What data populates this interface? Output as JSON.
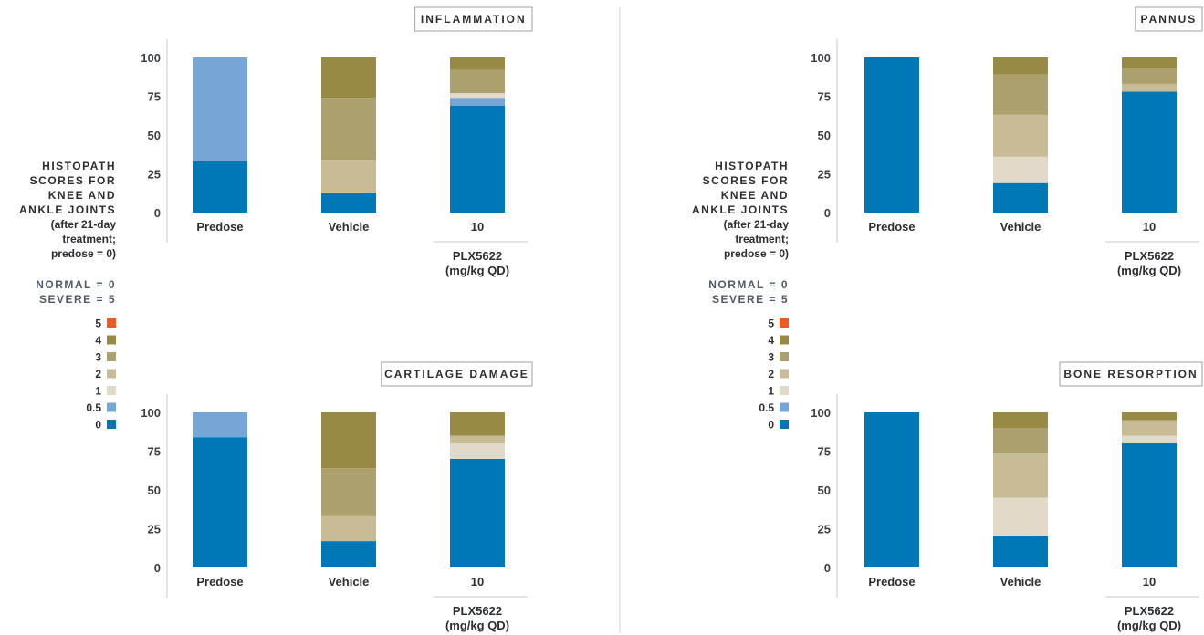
{
  "side_label": {
    "lines": [
      "HISTOPATH",
      "SCORES FOR",
      "KNEE AND",
      "ANKLE JOINTS",
      "(after 21-day",
      "treatment;",
      "predose = 0)"
    ],
    "normal": "NORMAL = 0",
    "severe": "SEVERE = 5"
  },
  "legend": {
    "items": [
      {
        "label": "5",
        "color": "#ee5a24"
      },
      {
        "label": "4",
        "color": "#988a45"
      },
      {
        "label": "3",
        "color": "#aca06d"
      },
      {
        "label": "2",
        "color": "#c8bc97"
      },
      {
        "label": "1",
        "color": "#e2dac8"
      },
      {
        "label": "0.5",
        "color": "#76a6d6"
      },
      {
        "label": "0",
        "color": "#0077b6"
      }
    ]
  },
  "chart_data": [
    {
      "type": "bar",
      "stacked": true,
      "title": "INFLAMMATION",
      "categories": [
        "Predose",
        "Vehicle",
        "10"
      ],
      "group_label": [
        "PLX5622",
        "(mg/kg QD)"
      ],
      "yticks": [
        0,
        25,
        50,
        75,
        100
      ],
      "ylim": [
        0,
        100
      ],
      "series": [
        {
          "name": "0",
          "values": [
            33,
            13,
            69
          ]
        },
        {
          "name": "0.5",
          "values": [
            67,
            0,
            5
          ]
        },
        {
          "name": "1",
          "values": [
            0,
            0,
            3
          ]
        },
        {
          "name": "2",
          "values": [
            0,
            21,
            0
          ]
        },
        {
          "name": "3",
          "values": [
            0,
            40,
            15
          ]
        },
        {
          "name": "4",
          "values": [
            0,
            26,
            8
          ]
        },
        {
          "name": "5",
          "values": [
            0,
            0,
            0
          ]
        }
      ]
    },
    {
      "type": "bar",
      "stacked": true,
      "title": "PANNUS",
      "categories": [
        "Predose",
        "Vehicle",
        "10"
      ],
      "group_label": [
        "PLX5622",
        "(mg/kg QD)"
      ],
      "yticks": [
        0,
        25,
        50,
        75,
        100
      ],
      "ylim": [
        0,
        100
      ],
      "series": [
        {
          "name": "0",
          "values": [
            100,
            19,
            78
          ]
        },
        {
          "name": "0.5",
          "values": [
            0,
            0,
            0
          ]
        },
        {
          "name": "1",
          "values": [
            0,
            17,
            0
          ]
        },
        {
          "name": "2",
          "values": [
            0,
            27,
            5
          ]
        },
        {
          "name": "3",
          "values": [
            0,
            26,
            10
          ]
        },
        {
          "name": "4",
          "values": [
            0,
            11,
            7
          ]
        },
        {
          "name": "5",
          "values": [
            0,
            0,
            0
          ]
        }
      ]
    },
    {
      "type": "bar",
      "stacked": true,
      "title": "CARTILAGE DAMAGE",
      "categories": [
        "Predose",
        "Vehicle",
        "10"
      ],
      "group_label": [
        "PLX5622",
        "(mg/kg QD)"
      ],
      "yticks": [
        0,
        25,
        50,
        75,
        100
      ],
      "ylim": [
        0,
        100
      ],
      "series": [
        {
          "name": "0",
          "values": [
            84,
            17,
            70
          ]
        },
        {
          "name": "0.5",
          "values": [
            16,
            0,
            0
          ]
        },
        {
          "name": "1",
          "values": [
            0,
            0,
            10
          ]
        },
        {
          "name": "2",
          "values": [
            0,
            16,
            5
          ]
        },
        {
          "name": "3",
          "values": [
            0,
            31,
            0
          ]
        },
        {
          "name": "4",
          "values": [
            0,
            36,
            15
          ]
        },
        {
          "name": "5",
          "values": [
            0,
            0,
            0
          ]
        }
      ]
    },
    {
      "type": "bar",
      "stacked": true,
      "title": "BONE RESORPTION",
      "categories": [
        "Predose",
        "Vehicle",
        "10"
      ],
      "group_label": [
        "PLX5622",
        "(mg/kg QD)"
      ],
      "yticks": [
        0,
        25,
        50,
        75,
        100
      ],
      "ylim": [
        0,
        100
      ],
      "series": [
        {
          "name": "0",
          "values": [
            100,
            20,
            80
          ]
        },
        {
          "name": "0.5",
          "values": [
            0,
            0,
            0
          ]
        },
        {
          "name": "1",
          "values": [
            0,
            25,
            5
          ]
        },
        {
          "name": "2",
          "values": [
            0,
            29,
            10
          ]
        },
        {
          "name": "3",
          "values": [
            0,
            16,
            0
          ]
        },
        {
          "name": "4",
          "values": [
            0,
            10,
            5
          ]
        },
        {
          "name": "5",
          "values": [
            0,
            0,
            0
          ]
        }
      ]
    }
  ]
}
